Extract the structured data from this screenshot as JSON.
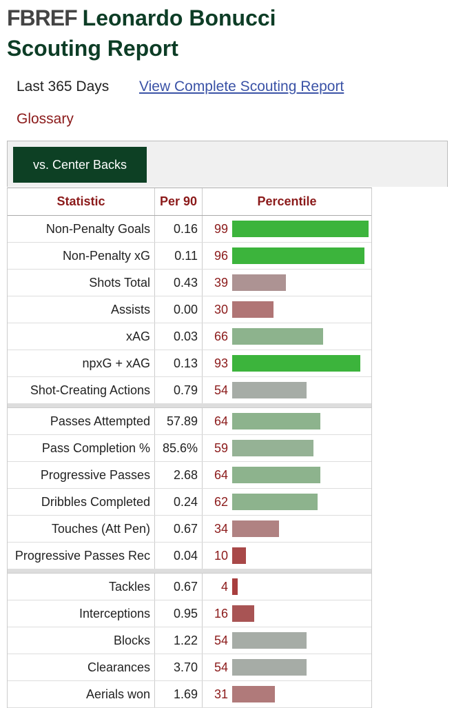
{
  "header": {
    "logo": "FBREF",
    "title": "Leonardo Bonucci Scouting Report"
  },
  "nav": {
    "period": "Last 365 Days",
    "link": "View Complete Scouting Report",
    "glossary": "Glossary"
  },
  "tab": "vs. Center Backs",
  "table": {
    "columns": [
      "Statistic",
      "Per 90",
      "Percentile"
    ],
    "groups": [
      [
        {
          "stat": "Non-Penalty Goals",
          "per90": "0.16",
          "percentile": 99,
          "color": "#3cb43c"
        },
        {
          "stat": "Non-Penalty xG",
          "per90": "0.11",
          "percentile": 96,
          "color": "#3cb43c"
        },
        {
          "stat": "Shots Total",
          "per90": "0.43",
          "percentile": 39,
          "color": "#ad9393"
        },
        {
          "stat": "Assists",
          "per90": "0.00",
          "percentile": 30,
          "color": "#b07575"
        },
        {
          "stat": "xAG",
          "per90": "0.03",
          "percentile": 66,
          "color": "#8db38d"
        },
        {
          "stat": "npxG + xAG",
          "per90": "0.13",
          "percentile": 93,
          "color": "#3cb43c"
        },
        {
          "stat": "Shot-Creating Actions",
          "per90": "0.79",
          "percentile": 54,
          "color": "#a6aca6"
        }
      ],
      [
        {
          "stat": "Passes Attempted",
          "per90": "57.89",
          "percentile": 64,
          "color": "#8db38d"
        },
        {
          "stat": "Pass Completion %",
          "per90": "85.6%",
          "percentile": 59,
          "color": "#95b295"
        },
        {
          "stat": "Progressive Passes",
          "per90": "2.68",
          "percentile": 64,
          "color": "#8db38d"
        },
        {
          "stat": "Dribbles Completed",
          "per90": "0.24",
          "percentile": 62,
          "color": "#8db38d"
        },
        {
          "stat": "Touches (Att Pen)",
          "per90": "0.67",
          "percentile": 34,
          "color": "#b08282"
        },
        {
          "stat": "Progressive Passes Rec",
          "per90": "0.04",
          "percentile": 10,
          "color": "#a84848"
        }
      ],
      [
        {
          "stat": "Tackles",
          "per90": "0.67",
          "percentile": 4,
          "color": "#a83e3e"
        },
        {
          "stat": "Interceptions",
          "per90": "0.95",
          "percentile": 16,
          "color": "#a85454"
        },
        {
          "stat": "Blocks",
          "per90": "1.22",
          "percentile": 54,
          "color": "#a6aca6"
        },
        {
          "stat": "Clearances",
          "per90": "3.70",
          "percentile": 54,
          "color": "#a6aca6"
        },
        {
          "stat": "Aerials won",
          "per90": "1.69",
          "percentile": 31,
          "color": "#b07a7a"
        }
      ]
    ]
  }
}
